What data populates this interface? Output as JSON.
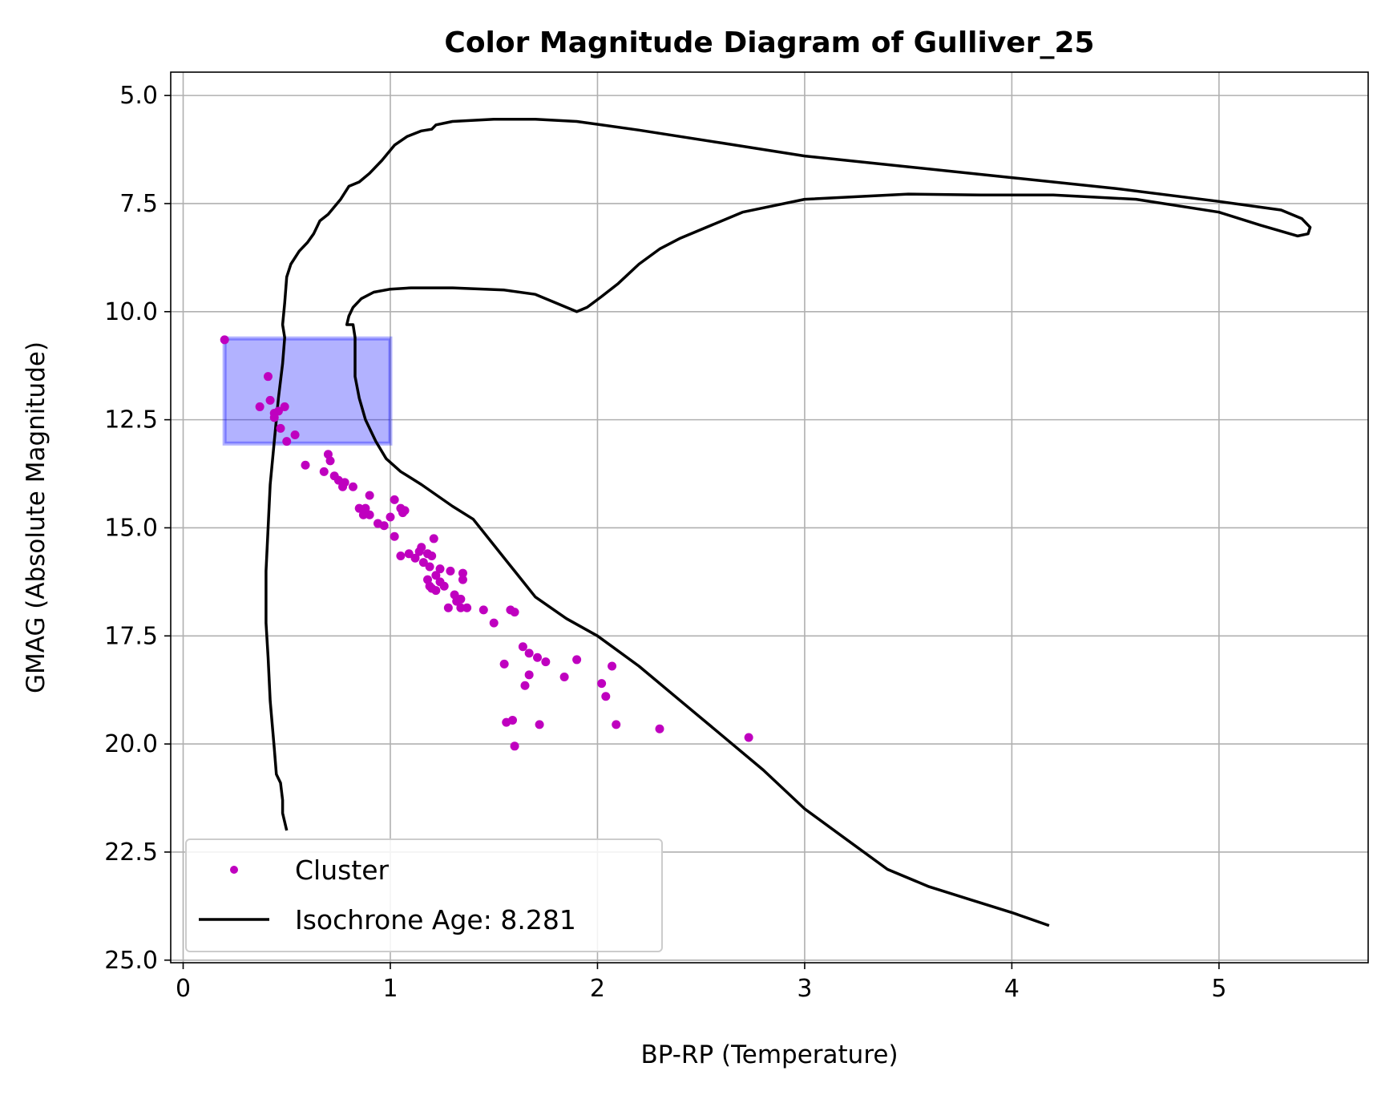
{
  "chart_data": {
    "type": "scatter",
    "title": "Color Magnitude Diagram of Gulliver_25",
    "xlabel": "BP-RP (Temperature)",
    "ylabel": "GMAG (Absolute Magnitude)",
    "xlim": [
      -0.06,
      5.72
    ],
    "ylim": [
      25.06,
      4.46
    ],
    "y_inverted": true,
    "grid": true,
    "legend_position": "lower left",
    "x_ticks": [
      0,
      1,
      2,
      3,
      4,
      5
    ],
    "x_tick_labels": [
      "0",
      "1",
      "2",
      "3",
      "4",
      "5"
    ],
    "y_ticks": [
      5.0,
      7.5,
      10.0,
      12.5,
      15.0,
      17.5,
      20.0,
      22.5,
      25.0
    ],
    "y_tick_labels": [
      "5.0",
      "7.5",
      "10.0",
      "12.5",
      "15.0",
      "17.5",
      "20.0",
      "22.5",
      "25.0"
    ],
    "highlight_region": {
      "x": [
        0.2,
        1.0
      ],
      "y": [
        10.62,
        13.05
      ],
      "color": "#0000ff",
      "opacity": 0.3
    },
    "series": [
      {
        "name": "Cluster",
        "kind": "scatter",
        "color": "#bf00bf",
        "points": [
          [
            0.2,
            10.65
          ],
          [
            0.41,
            11.5
          ],
          [
            0.42,
            12.05
          ],
          [
            0.37,
            12.2
          ],
          [
            0.49,
            12.2
          ],
          [
            0.44,
            12.35
          ],
          [
            0.46,
            12.3
          ],
          [
            0.44,
            12.45
          ],
          [
            0.47,
            12.7
          ],
          [
            0.54,
            12.85
          ],
          [
            0.5,
            13.0
          ],
          [
            0.7,
            13.3
          ],
          [
            0.71,
            13.45
          ],
          [
            0.59,
            13.55
          ],
          [
            0.68,
            13.7
          ],
          [
            0.73,
            13.8
          ],
          [
            0.75,
            13.9
          ],
          [
            0.78,
            13.95
          ],
          [
            0.77,
            14.05
          ],
          [
            0.82,
            14.05
          ],
          [
            0.9,
            14.25
          ],
          [
            1.02,
            14.35
          ],
          [
            1.05,
            14.55
          ],
          [
            1.07,
            14.6
          ],
          [
            1.06,
            14.65
          ],
          [
            0.85,
            14.55
          ],
          [
            0.88,
            14.55
          ],
          [
            0.87,
            14.7
          ],
          [
            0.9,
            14.7
          ],
          [
            0.94,
            14.9
          ],
          [
            0.97,
            14.95
          ],
          [
            1.0,
            14.75
          ],
          [
            1.02,
            15.2
          ],
          [
            1.21,
            15.25
          ],
          [
            1.15,
            15.45
          ],
          [
            1.14,
            15.55
          ],
          [
            1.09,
            15.6
          ],
          [
            1.05,
            15.65
          ],
          [
            1.12,
            15.7
          ],
          [
            1.18,
            15.6
          ],
          [
            1.2,
            15.65
          ],
          [
            1.16,
            15.8
          ],
          [
            1.19,
            15.9
          ],
          [
            1.24,
            15.95
          ],
          [
            1.29,
            16.0
          ],
          [
            1.35,
            16.05
          ],
          [
            1.35,
            16.2
          ],
          [
            1.22,
            16.1
          ],
          [
            1.18,
            16.2
          ],
          [
            1.24,
            16.25
          ],
          [
            1.19,
            16.35
          ],
          [
            1.2,
            16.4
          ],
          [
            1.22,
            16.45
          ],
          [
            1.26,
            16.35
          ],
          [
            1.31,
            16.55
          ],
          [
            1.32,
            16.7
          ],
          [
            1.34,
            16.65
          ],
          [
            1.28,
            16.85
          ],
          [
            1.34,
            16.85
          ],
          [
            1.37,
            16.85
          ],
          [
            1.45,
            16.9
          ],
          [
            1.58,
            16.9
          ],
          [
            1.6,
            16.95
          ],
          [
            1.5,
            17.2
          ],
          [
            1.64,
            17.75
          ],
          [
            1.67,
            17.9
          ],
          [
            1.71,
            18.0
          ],
          [
            1.75,
            18.1
          ],
          [
            1.55,
            18.15
          ],
          [
            1.67,
            18.4
          ],
          [
            1.84,
            18.45
          ],
          [
            1.9,
            18.05
          ],
          [
            2.07,
            18.2
          ],
          [
            2.02,
            18.6
          ],
          [
            1.65,
            18.65
          ],
          [
            2.04,
            18.9
          ],
          [
            1.56,
            19.5
          ],
          [
            1.59,
            19.45
          ],
          [
            1.72,
            19.55
          ],
          [
            2.09,
            19.55
          ],
          [
            2.3,
            19.65
          ],
          [
            2.73,
            19.85
          ],
          [
            1.6,
            20.05
          ]
        ]
      },
      {
        "name": "Isochrone Age: 8.281",
        "kind": "line",
        "color": "#000000",
        "points": [
          [
            0.5,
            22.0
          ],
          [
            0.48,
            21.6
          ],
          [
            0.48,
            21.3
          ],
          [
            0.47,
            20.9
          ],
          [
            0.45,
            20.7
          ],
          [
            0.44,
            20.1
          ],
          [
            0.42,
            19.0
          ],
          [
            0.41,
            18.0
          ],
          [
            0.4,
            17.2
          ],
          [
            0.4,
            16.0
          ],
          [
            0.41,
            15.0
          ],
          [
            0.42,
            14.0
          ],
          [
            0.44,
            13.0
          ],
          [
            0.46,
            12.0
          ],
          [
            0.48,
            11.2
          ],
          [
            0.49,
            10.6
          ],
          [
            0.48,
            10.3
          ],
          [
            0.49,
            9.8
          ],
          [
            0.5,
            9.2
          ],
          [
            0.52,
            8.9
          ],
          [
            0.56,
            8.6
          ],
          [
            0.6,
            8.4
          ],
          [
            0.63,
            8.2
          ],
          [
            0.66,
            7.9
          ],
          [
            0.7,
            7.75
          ],
          [
            0.76,
            7.4
          ],
          [
            0.8,
            7.1
          ],
          [
            0.85,
            7.0
          ],
          [
            0.9,
            6.8
          ],
          [
            0.96,
            6.5
          ],
          [
            1.02,
            6.15
          ],
          [
            1.08,
            5.95
          ],
          [
            1.15,
            5.82
          ],
          [
            1.2,
            5.78
          ],
          [
            1.22,
            5.68
          ],
          [
            1.3,
            5.6
          ],
          [
            1.5,
            5.55
          ],
          [
            1.7,
            5.55
          ],
          [
            1.9,
            5.6
          ],
          [
            2.2,
            5.8
          ],
          [
            2.6,
            6.1
          ],
          [
            3.0,
            6.4
          ],
          [
            3.5,
            6.65
          ],
          [
            4.0,
            6.9
          ],
          [
            4.5,
            7.15
          ],
          [
            5.0,
            7.45
          ],
          [
            5.3,
            7.65
          ],
          [
            5.4,
            7.85
          ],
          [
            5.44,
            8.05
          ],
          [
            5.43,
            8.2
          ],
          [
            5.38,
            8.25
          ],
          [
            5.2,
            8.0
          ],
          [
            5.0,
            7.7
          ],
          [
            4.6,
            7.4
          ],
          [
            4.2,
            7.3
          ],
          [
            3.85,
            7.3
          ],
          [
            3.5,
            7.28
          ],
          [
            3.0,
            7.4
          ],
          [
            2.7,
            7.7
          ],
          [
            2.4,
            8.3
          ],
          [
            2.3,
            8.55
          ],
          [
            2.2,
            8.9
          ],
          [
            2.1,
            9.35
          ],
          [
            2.02,
            9.65
          ],
          [
            1.95,
            9.9
          ],
          [
            1.9,
            10.0
          ],
          [
            1.85,
            9.9
          ],
          [
            1.8,
            9.8
          ],
          [
            1.7,
            9.6
          ],
          [
            1.55,
            9.5
          ],
          [
            1.3,
            9.45
          ],
          [
            1.1,
            9.45
          ],
          [
            1.0,
            9.48
          ],
          [
            0.92,
            9.55
          ],
          [
            0.86,
            9.7
          ],
          [
            0.82,
            9.9
          ],
          [
            0.8,
            10.1
          ],
          [
            0.79,
            10.3
          ],
          [
            0.82,
            10.3
          ],
          [
            0.83,
            10.6
          ],
          [
            0.83,
            11.0
          ],
          [
            0.83,
            11.5
          ],
          [
            0.85,
            12.0
          ],
          [
            0.88,
            12.5
          ],
          [
            0.93,
            13.0
          ],
          [
            0.98,
            13.4
          ],
          [
            1.05,
            13.7
          ],
          [
            1.15,
            14.0
          ],
          [
            1.3,
            14.5
          ],
          [
            1.4,
            14.8
          ],
          [
            1.5,
            15.4
          ],
          [
            1.6,
            16.0
          ],
          [
            1.7,
            16.6
          ],
          [
            1.85,
            17.1
          ],
          [
            2.0,
            17.5
          ],
          [
            2.2,
            18.2
          ],
          [
            2.4,
            19.0
          ],
          [
            2.6,
            19.8
          ],
          [
            2.8,
            20.6
          ],
          [
            3.0,
            21.5
          ],
          [
            3.2,
            22.2
          ],
          [
            3.4,
            22.9
          ],
          [
            3.6,
            23.3
          ],
          [
            3.8,
            23.6
          ],
          [
            4.0,
            23.9
          ],
          [
            4.18,
            24.2
          ]
        ]
      }
    ]
  }
}
